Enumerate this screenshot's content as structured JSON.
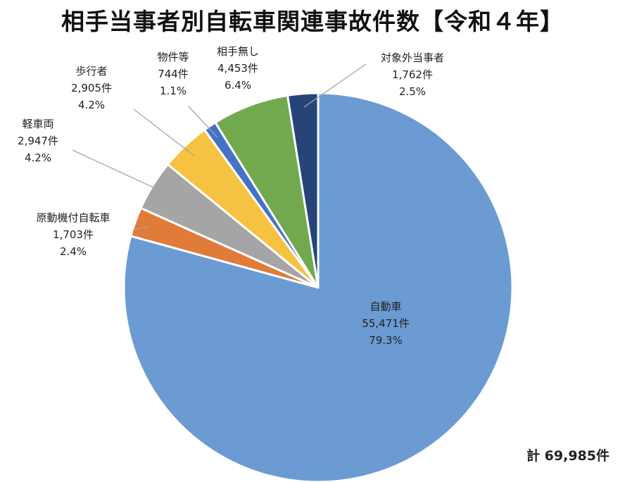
{
  "chart_data": {
    "type": "pie",
    "title": "相手当事者別自転車関連事故件数【令和４年】",
    "slices": [
      {
        "name": "自動車",
        "count_label": "55,471件",
        "percent_label": "79.3%",
        "value": 55471,
        "color": "#6b9bd2",
        "label_inside": true
      },
      {
        "name": "原動機付自転車",
        "count_label": "1,703件",
        "percent_label": "2.4%",
        "value": 1703,
        "color": "#e07b39"
      },
      {
        "name": "軽車両",
        "count_label": "2,947件",
        "percent_label": "4.2%",
        "value": 2947,
        "color": "#a5a5a5"
      },
      {
        "name": "歩行者",
        "count_label": "2,905件",
        "percent_label": "4.2%",
        "value": 2905,
        "color": "#f5c242"
      },
      {
        "name": "物件等",
        "count_label": "744件",
        "percent_label": "1.1%",
        "value": 744,
        "color": "#4472c4"
      },
      {
        "name": "相手無し",
        "count_label": "4,453件",
        "percent_label": "6.4%",
        "value": 4453,
        "color": "#72a94f"
      },
      {
        "name": "対象外当事者",
        "count_label": "1,762件",
        "percent_label": "2.5%",
        "value": 1762,
        "color": "#264478"
      }
    ],
    "total_label": "計 69,985件"
  }
}
